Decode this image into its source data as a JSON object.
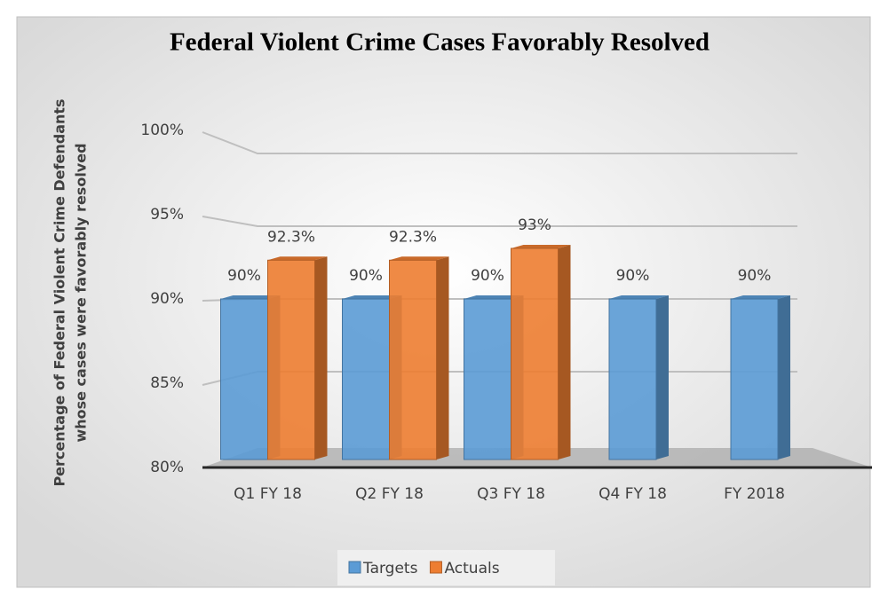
{
  "chart_data": {
    "type": "bar3d",
    "title": "Federal Violent Crime Cases Favorably Resolved",
    "ylabel": [
      "Percentage of Federal Violent Crime Defendants",
      "whose cases were favorably resolved"
    ],
    "categories": [
      "Q1 FY 18",
      "Q2 FY 18",
      "Q3 FY 18",
      "Q4 FY 18",
      "FY 2018"
    ],
    "series": [
      {
        "name": "Targets",
        "color": "#5b9bd5",
        "values": [
          90,
          90,
          90,
          90,
          90
        ],
        "value_labels": [
          "90%",
          "90%",
          "90%",
          "90%",
          "90%"
        ]
      },
      {
        "name": "Actuals",
        "color": "#ed7d31",
        "values": [
          92.3,
          92.3,
          93,
          null,
          null
        ],
        "value_labels": [
          "92.3%",
          "92.3%",
          "93%",
          null,
          null
        ]
      }
    ],
    "ylim": [
      80,
      100
    ],
    "yticks": [
      {
        "value": 80,
        "label": "80%"
      },
      {
        "value": 85,
        "label": "85%"
      },
      {
        "value": 90,
        "label": "90%"
      },
      {
        "value": 95,
        "label": "95%"
      },
      {
        "value": 100,
        "label": "100%"
      }
    ],
    "grid": true,
    "legend": "bottom"
  }
}
